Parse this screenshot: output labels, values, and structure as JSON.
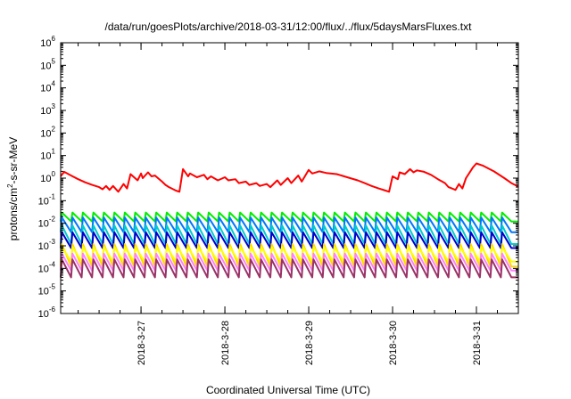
{
  "chart_data": {
    "type": "line",
    "title": "/data/run/goesPlots/archive/2018-03-31/12:00/flux/../flux/5daysMarsFluxes.txt",
    "xlabel": "Coordinated Universal Time (UTC)",
    "ylabel_main": "protons/cm",
    "ylabel_sup": "2",
    "ylabel_rest": "-s-sr-MeV",
    "y_scale": "log",
    "ylim": [
      1e-06,
      1000000.0
    ],
    "xlim": [
      "2018-03-26T01:00",
      "2018-03-31T12:00"
    ],
    "grid": false,
    "legend": "none",
    "x_ticks": [
      {
        "label": "2018-3-27",
        "t": "2018-03-27T00:00"
      },
      {
        "label": "2018-3-28",
        "t": "2018-03-28T00:00"
      },
      {
        "label": "2018-3-29",
        "t": "2018-03-29T00:00"
      },
      {
        "label": "2018-3-30",
        "t": "2018-03-30T00:00"
      },
      {
        "label": "2018-3-31",
        "t": "2018-03-31T00:00"
      }
    ],
    "y_ticks": [
      {
        "base": "10",
        "exp": "-6",
        "value": 1e-06
      },
      {
        "base": "10",
        "exp": "-5",
        "value": 1e-05
      },
      {
        "base": "10",
        "exp": "-4",
        "value": 0.0001
      },
      {
        "base": "10",
        "exp": "-3",
        "value": 0.001
      },
      {
        "base": "10",
        "exp": "-2",
        "value": 0.01
      },
      {
        "base": "10",
        "exp": "-1",
        "value": 0.1
      },
      {
        "base": "10",
        "exp": "0",
        "value": 1
      },
      {
        "base": "10",
        "exp": "1",
        "value": 10
      },
      {
        "base": "10",
        "exp": "2",
        "value": 100
      },
      {
        "base": "10",
        "exp": "3",
        "value": 1000
      },
      {
        "base": "10",
        "exp": "4",
        "value": 10000
      },
      {
        "base": "10",
        "exp": "5",
        "value": 100000
      },
      {
        "base": "10",
        "exp": "6",
        "value": 1000000
      }
    ],
    "series": [
      {
        "color": "#ff0000",
        "x": [
          "2018-03-26T01:00",
          "2018-03-26T02:00",
          "2018-03-26T04:00",
          "2018-03-26T06:00",
          "2018-03-26T08:00",
          "2018-03-26T10:00",
          "2018-03-26T12:00",
          "2018-03-26T13:00",
          "2018-03-26T14:00",
          "2018-03-26T15:00",
          "2018-03-26T16:00",
          "2018-03-26T17:30",
          "2018-03-26T19:00",
          "2018-03-26T20:00",
          "2018-03-26T21:00",
          "2018-03-26T23:00",
          "2018-03-27T00:00",
          "2018-03-27T00:30",
          "2018-03-27T02:00",
          "2018-03-27T03:00",
          "2018-03-27T04:00",
          "2018-03-27T06:00",
          "2018-03-27T07:00",
          "2018-03-27T08:00",
          "2018-03-27T10:00",
          "2018-03-27T11:00",
          "2018-03-27T12:00",
          "2018-03-27T13:30",
          "2018-03-27T14:00",
          "2018-03-27T16:00",
          "2018-03-27T18:00",
          "2018-03-27T19:00",
          "2018-03-27T20:00",
          "2018-03-27T22:00",
          "2018-03-28T00:00",
          "2018-03-28T01:00",
          "2018-03-28T03:00",
          "2018-03-28T04:00",
          "2018-03-28T06:00",
          "2018-03-28T07:00",
          "2018-03-28T09:00",
          "2018-03-28T10:00",
          "2018-03-28T12:00",
          "2018-03-28T13:00",
          "2018-03-28T15:00",
          "2018-03-28T16:00",
          "2018-03-28T18:00",
          "2018-03-28T19:00",
          "2018-03-28T21:00",
          "2018-03-28T22:00",
          "2018-03-29T00:00",
          "2018-03-29T01:00",
          "2018-03-29T03:00",
          "2018-03-29T05:00",
          "2018-03-29T08:00",
          "2018-03-29T11:00",
          "2018-03-29T14:00",
          "2018-03-29T16:00",
          "2018-03-29T18:00",
          "2018-03-29T20:00",
          "2018-03-29T22:00",
          "2018-03-29T23:00",
          "2018-03-30T00:00",
          "2018-03-30T01:30",
          "2018-03-30T02:00",
          "2018-03-30T03:30",
          "2018-03-30T05:00",
          "2018-03-30T06:00",
          "2018-03-30T07:00",
          "2018-03-30T09:00",
          "2018-03-30T11:00",
          "2018-03-30T13:00",
          "2018-03-30T15:00",
          "2018-03-30T16:00",
          "2018-03-30T18:00",
          "2018-03-30T19:00",
          "2018-03-30T20:00",
          "2018-03-30T21:00",
          "2018-03-30T23:00",
          "2018-03-31T00:00",
          "2018-03-31T02:00",
          "2018-03-31T05:00",
          "2018-03-31T08:00",
          "2018-03-31T10:00",
          "2018-03-31T12:00"
        ],
        "y": [
          1.2,
          1.9,
          1.3,
          0.9,
          0.65,
          0.5,
          0.4,
          0.32,
          0.45,
          0.3,
          0.45,
          0.25,
          0.55,
          0.35,
          1.5,
          0.8,
          1.6,
          1.0,
          1.8,
          1.2,
          1.3,
          0.7,
          0.5,
          0.4,
          0.28,
          0.25,
          2.5,
          1.2,
          1.6,
          1.1,
          1.4,
          0.9,
          1.2,
          0.8,
          1.1,
          0.8,
          0.9,
          0.6,
          0.7,
          0.5,
          0.6,
          0.45,
          0.55,
          0.4,
          0.8,
          0.5,
          1.0,
          0.6,
          1.3,
          0.7,
          2.3,
          1.6,
          2.0,
          1.7,
          1.5,
          1.1,
          0.8,
          0.6,
          0.45,
          0.35,
          0.28,
          0.25,
          1.2,
          0.9,
          1.8,
          1.5,
          2.5,
          1.8,
          2.2,
          1.9,
          1.4,
          0.9,
          0.6,
          0.4,
          0.3,
          0.55,
          0.35,
          1.0,
          3.0,
          4.5,
          3.5,
          2.0,
          1.0,
          0.6,
          0.42
        ]
      },
      {
        "color": "#00ee00",
        "pattern": "sawtooth",
        "period_hours": 3,
        "low": 0.012,
        "high": 0.03
      },
      {
        "color": "#0077ff",
        "pattern": "sawtooth",
        "period_hours": 3,
        "low": 0.004,
        "high": 0.018
      },
      {
        "color": "#00cccc",
        "pattern": "sawtooth",
        "period_hours": 3,
        "low": 0.0012,
        "high": 0.008
      },
      {
        "color": "#0000cc",
        "pattern": "sawtooth",
        "period_hours": 3,
        "low": 0.0008,
        "high": 0.004
      },
      {
        "color": "#ffd700",
        "pattern": "sawtooth",
        "period_hours": 3,
        "low": 0.00012,
        "high": 0.0012
      },
      {
        "color": "#ffff00",
        "pattern": "sawtooth",
        "period_hours": 3,
        "low": 0.0002,
        "high": 0.0009
      },
      {
        "color": "#ff7fff",
        "pattern": "sawtooth",
        "period_hours": 3,
        "low": 8e-05,
        "high": 0.00045
      },
      {
        "color": "#993366",
        "pattern": "sawtooth",
        "period_hours": 3,
        "low": 4e-05,
        "high": 0.00025
      }
    ]
  }
}
